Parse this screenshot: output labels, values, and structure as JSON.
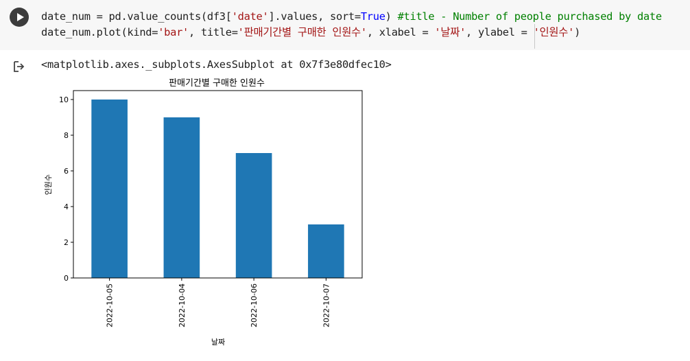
{
  "cell": {
    "code_line1": {
      "part1": "date_num = pd.value_counts(df3[",
      "str1": "'date'",
      "part2": "].values, sort=",
      "kw1": "True",
      "part3": ") ",
      "comment": "#title - Number of people purchased by date"
    },
    "code_line2": {
      "part1": "date_num.plot(kind=",
      "str1": "'bar'",
      "part2": ", title=",
      "str2": "'판매기간별 구매한 인원수'",
      "part3": ", xlabel = ",
      "str3": "'날짜'",
      "part4": ", ylabel = ",
      "str4": "'인원수'",
      "part5": ")"
    },
    "output_text": "<matplotlib.axes._subplots.AxesSubplot at 0x7f3e80dfec10>"
  },
  "icons": {
    "run": "play-circle-icon",
    "output": "output-arrow-icon"
  },
  "chart_data": {
    "type": "bar",
    "title": "판매기간별 구매한 인원수",
    "xlabel": "날짜",
    "ylabel": "인원수",
    "categories": [
      "2022-10-05",
      "2022-10-04",
      "2022-10-06",
      "2022-10-07"
    ],
    "values": [
      10,
      9,
      7,
      3
    ],
    "ylim": [
      0,
      10.5
    ],
    "yticks": [
      0,
      2,
      4,
      6,
      8,
      10
    ],
    "grid": false,
    "bar_color": "#1f77b4"
  }
}
